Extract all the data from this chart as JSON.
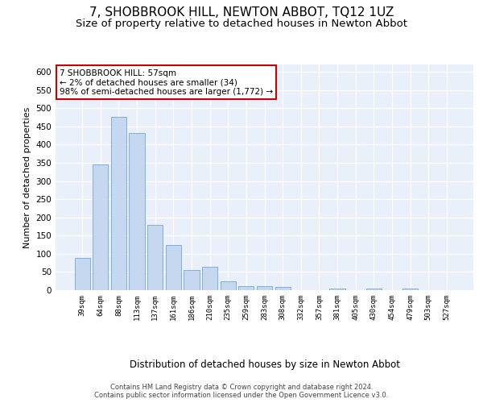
{
  "title": "7, SHOBBROOK HILL, NEWTON ABBOT, TQ12 1UZ",
  "subtitle": "Size of property relative to detached houses in Newton Abbot",
  "xlabel": "Distribution of detached houses by size in Newton Abbot",
  "ylabel": "Number of detached properties",
  "categories": [
    "39sqm",
    "64sqm",
    "88sqm",
    "113sqm",
    "137sqm",
    "161sqm",
    "186sqm",
    "210sqm",
    "235sqm",
    "259sqm",
    "283sqm",
    "308sqm",
    "332sqm",
    "357sqm",
    "381sqm",
    "405sqm",
    "430sqm",
    "454sqm",
    "479sqm",
    "503sqm",
    "527sqm"
  ],
  "values": [
    88,
    346,
    476,
    432,
    180,
    125,
    55,
    65,
    24,
    12,
    12,
    8,
    0,
    0,
    5,
    0,
    5,
    0,
    5,
    0,
    0
  ],
  "bar_color": "#c5d8f0",
  "bar_edge_color": "#6ea8d8",
  "annotation_text": "7 SHOBBROOK HILL: 57sqm\n← 2% of detached houses are smaller (34)\n98% of semi-detached houses are larger (1,772) →",
  "annotation_box_color": "#ffffff",
  "annotation_box_edge": "#cc0000",
  "footer": "Contains HM Land Registry data © Crown copyright and database right 2024.\nContains public sector information licensed under the Open Government Licence v3.0.",
  "ylim": [
    0,
    620
  ],
  "yticks": [
    0,
    50,
    100,
    150,
    200,
    250,
    300,
    350,
    400,
    450,
    500,
    550,
    600
  ],
  "bg_color": "#eaf0f9",
  "grid_color": "#ffffff",
  "title_fontsize": 11,
  "subtitle_fontsize": 9.5
}
